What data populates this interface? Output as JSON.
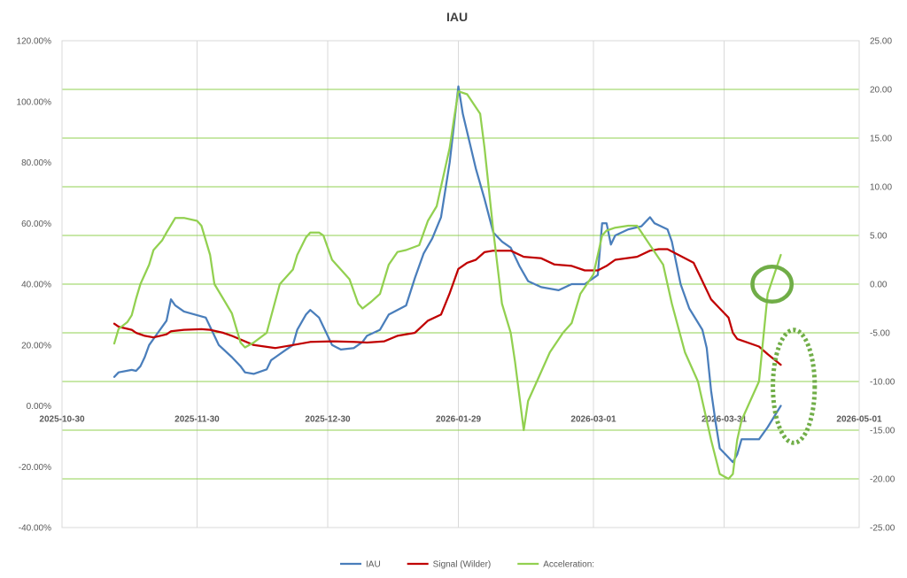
{
  "chart_data": {
    "type": "line",
    "title": "IAU",
    "x_axis": {
      "type": "date",
      "min": "2025-10-30",
      "max": "2026-05-01",
      "ticks": [
        "2025-10-30",
        "2025-11-30",
        "2025-12-30",
        "2026-01-29",
        "2026-03-01",
        "2026-03-31",
        "2026-05-01"
      ]
    },
    "y_left": {
      "min": -0.4,
      "max": 1.2,
      "step": 0.2,
      "tick_labels": [
        "-40.00%",
        "-20.00%",
        "0.00%",
        "20.00%",
        "40.00%",
        "60.00%",
        "80.00%",
        "100.00%",
        "120.00%"
      ]
    },
    "y_right": {
      "min": -25,
      "max": 25,
      "step": 5,
      "tick_labels": [
        "-25.00",
        "-20.00",
        "-15.00",
        "-10.00",
        "-5.00",
        "0.00",
        "5.00",
        "10.00",
        "15.00",
        "20.00",
        "25.00"
      ],
      "gridlines": true
    },
    "legend_position": "bottom",
    "series": [
      {
        "name": "IAU",
        "axis": "left",
        "color": "#4a7ebb",
        "points": [
          [
            "2025-11-11",
            0.095
          ],
          [
            "2025-11-12",
            0.11
          ],
          [
            "2025-11-15",
            0.118
          ],
          [
            "2025-11-16",
            0.115
          ],
          [
            "2025-11-17",
            0.13
          ],
          [
            "2025-11-18",
            0.16
          ],
          [
            "2025-11-19",
            0.2
          ],
          [
            "2025-11-21",
            0.24
          ],
          [
            "2025-11-23",
            0.28
          ],
          [
            "2025-11-24",
            0.35
          ],
          [
            "2025-11-25",
            0.33
          ],
          [
            "2025-11-27",
            0.31
          ],
          [
            "2025-12-02",
            0.29
          ],
          [
            "2025-12-03",
            0.26
          ],
          [
            "2025-12-05",
            0.2
          ],
          [
            "2025-12-08",
            0.16
          ],
          [
            "2025-12-10",
            0.13
          ],
          [
            "2025-12-11",
            0.11
          ],
          [
            "2025-12-13",
            0.105
          ],
          [
            "2025-12-16",
            0.12
          ],
          [
            "2025-12-17",
            0.15
          ],
          [
            "2025-12-18",
            0.16
          ],
          [
            "2025-12-20",
            0.18
          ],
          [
            "2025-12-22",
            0.2
          ],
          [
            "2025-12-23",
            0.25
          ],
          [
            "2025-12-25",
            0.3
          ],
          [
            "2025-12-26",
            0.315
          ],
          [
            "2025-12-28",
            0.29
          ],
          [
            "2025-12-29",
            0.26
          ],
          [
            "2025-12-31",
            0.2
          ],
          [
            "2026-01-02",
            0.185
          ],
          [
            "2026-01-05",
            0.19
          ],
          [
            "2026-01-07",
            0.21
          ],
          [
            "2026-01-08",
            0.23
          ],
          [
            "2026-01-11",
            0.25
          ],
          [
            "2026-01-13",
            0.3
          ],
          [
            "2026-01-17",
            0.33
          ],
          [
            "2026-01-19",
            0.42
          ],
          [
            "2026-01-21",
            0.5
          ],
          [
            "2026-01-23",
            0.55
          ],
          [
            "2026-01-25",
            0.62
          ],
          [
            "2026-01-27",
            0.8
          ],
          [
            "2026-01-29",
            1.05
          ],
          [
            "2026-01-30",
            0.96
          ],
          [
            "2026-02-02",
            0.78
          ],
          [
            "2026-02-04",
            0.68
          ],
          [
            "2026-02-06",
            0.57
          ],
          [
            "2026-02-08",
            0.54
          ],
          [
            "2026-02-10",
            0.52
          ],
          [
            "2026-02-12",
            0.46
          ],
          [
            "2026-02-14",
            0.41
          ],
          [
            "2026-02-17",
            0.39
          ],
          [
            "2026-02-21",
            0.38
          ],
          [
            "2026-02-24",
            0.4
          ],
          [
            "2026-02-27",
            0.4
          ],
          [
            "2026-03-02",
            0.43
          ],
          [
            "2026-03-03",
            0.6
          ],
          [
            "2026-03-04",
            0.6
          ],
          [
            "2026-03-05",
            0.53
          ],
          [
            "2026-03-06",
            0.56
          ],
          [
            "2026-03-09",
            0.58
          ],
          [
            "2026-03-12",
            0.59
          ],
          [
            "2026-03-14",
            0.62
          ],
          [
            "2026-03-15",
            0.6
          ],
          [
            "2026-03-18",
            0.58
          ],
          [
            "2026-03-19",
            0.54
          ],
          [
            "2026-03-21",
            0.4
          ],
          [
            "2026-03-23",
            0.32
          ],
          [
            "2026-03-26",
            0.25
          ],
          [
            "2026-03-27",
            0.19
          ],
          [
            "2026-03-28",
            0.05
          ],
          [
            "2026-03-29",
            -0.05
          ],
          [
            "2026-03-30",
            -0.14
          ],
          [
            "2026-04-01",
            -0.17
          ],
          [
            "2026-04-02",
            -0.185
          ],
          [
            "2026-04-03",
            -0.16
          ],
          [
            "2026-04-04",
            -0.11
          ],
          [
            "2026-04-08",
            -0.11
          ],
          [
            "2026-04-10",
            -0.07
          ],
          [
            "2026-04-13",
            0.0
          ]
        ]
      },
      {
        "name": "Signal (Wilder)",
        "axis": "left",
        "color": "#c00000",
        "points": [
          [
            "2025-11-11",
            0.27
          ],
          [
            "2025-11-12",
            0.26
          ],
          [
            "2025-11-15",
            0.25
          ],
          [
            "2025-11-16",
            0.24
          ],
          [
            "2025-11-18",
            0.23
          ],
          [
            "2025-11-20",
            0.225
          ],
          [
            "2025-11-23",
            0.235
          ],
          [
            "2025-11-24",
            0.245
          ],
          [
            "2025-11-27",
            0.25
          ],
          [
            "2025-12-01",
            0.252
          ],
          [
            "2025-12-03",
            0.25
          ],
          [
            "2025-12-06",
            0.24
          ],
          [
            "2025-12-08",
            0.23
          ],
          [
            "2025-12-13",
            0.2
          ],
          [
            "2025-12-18",
            0.19
          ],
          [
            "2025-12-22",
            0.2
          ],
          [
            "2025-12-26",
            0.21
          ],
          [
            "2025-12-31",
            0.212
          ],
          [
            "2026-01-05",
            0.21
          ],
          [
            "2026-01-08",
            0.208
          ],
          [
            "2026-01-12",
            0.212
          ],
          [
            "2026-01-15",
            0.23
          ],
          [
            "2026-01-19",
            0.24
          ],
          [
            "2026-01-22",
            0.28
          ],
          [
            "2026-01-25",
            0.3
          ],
          [
            "2026-01-27",
            0.37
          ],
          [
            "2026-01-29",
            0.45
          ],
          [
            "2026-01-31",
            0.47
          ],
          [
            "2026-02-02",
            0.48
          ],
          [
            "2026-02-04",
            0.505
          ],
          [
            "2026-02-06",
            0.51
          ],
          [
            "2026-02-10",
            0.51
          ],
          [
            "2026-02-13",
            0.49
          ],
          [
            "2026-02-17",
            0.485
          ],
          [
            "2026-02-20",
            0.465
          ],
          [
            "2026-02-24",
            0.46
          ],
          [
            "2026-02-27",
            0.445
          ],
          [
            "2026-03-02",
            0.445
          ],
          [
            "2026-03-04",
            0.46
          ],
          [
            "2026-03-06",
            0.48
          ],
          [
            "2026-03-11",
            0.49
          ],
          [
            "2026-03-14",
            0.51
          ],
          [
            "2026-03-16",
            0.515
          ],
          [
            "2026-03-18",
            0.515
          ],
          [
            "2026-03-20",
            0.5
          ],
          [
            "2026-03-22",
            0.485
          ],
          [
            "2026-03-24",
            0.47
          ],
          [
            "2026-03-26",
            0.41
          ],
          [
            "2026-03-28",
            0.35
          ],
          [
            "2026-03-30",
            0.32
          ],
          [
            "2026-04-01",
            0.29
          ],
          [
            "2026-04-02",
            0.24
          ],
          [
            "2026-04-03",
            0.22
          ],
          [
            "2026-04-05",
            0.21
          ],
          [
            "2026-04-08",
            0.195
          ],
          [
            "2026-04-10",
            0.17
          ],
          [
            "2026-04-13",
            0.135
          ]
        ]
      },
      {
        "name": "Acceleration:",
        "axis": "right",
        "color": "#92d050",
        "points": [
          [
            "2025-11-11",
            -6.1
          ],
          [
            "2025-11-12",
            -4.6
          ],
          [
            "2025-11-14",
            -3.9
          ],
          [
            "2025-11-15",
            -3.2
          ],
          [
            "2025-11-16",
            -1.5
          ],
          [
            "2025-11-17",
            0.0
          ],
          [
            "2025-11-19",
            2.0
          ],
          [
            "2025-11-20",
            3.5
          ],
          [
            "2025-11-22",
            4.5
          ],
          [
            "2025-11-23",
            5.3
          ],
          [
            "2025-11-25",
            6.8
          ],
          [
            "2025-11-27",
            6.8
          ],
          [
            "2025-11-30",
            6.5
          ],
          [
            "2025-12-01",
            6.0
          ],
          [
            "2025-12-03",
            3.0
          ],
          [
            "2025-12-04",
            0.0
          ],
          [
            "2025-12-06",
            -1.5
          ],
          [
            "2025-12-08",
            -3.0
          ],
          [
            "2025-12-10",
            -6.0
          ],
          [
            "2025-12-11",
            -6.5
          ],
          [
            "2025-12-13",
            -6.0
          ],
          [
            "2025-12-16",
            -5.0
          ],
          [
            "2025-12-19",
            0.0
          ],
          [
            "2025-12-22",
            1.5
          ],
          [
            "2025-12-23",
            3.0
          ],
          [
            "2025-12-25",
            4.8
          ],
          [
            "2025-12-26",
            5.3
          ],
          [
            "2025-12-28",
            5.3
          ],
          [
            "2025-12-29",
            5.0
          ],
          [
            "2025-12-31",
            2.5
          ],
          [
            "2026-01-02",
            1.5
          ],
          [
            "2026-01-04",
            0.5
          ],
          [
            "2026-01-06",
            -2.0
          ],
          [
            "2026-01-07",
            -2.5
          ],
          [
            "2026-01-09",
            -1.8
          ],
          [
            "2026-01-11",
            -1.0
          ],
          [
            "2026-01-13",
            2.0
          ],
          [
            "2026-01-15",
            3.3
          ],
          [
            "2026-01-17",
            3.5
          ],
          [
            "2026-01-20",
            4.0
          ],
          [
            "2026-01-22",
            6.5
          ],
          [
            "2026-01-24",
            8.0
          ],
          [
            "2026-01-27",
            14.0
          ],
          [
            "2026-01-28",
            17.0
          ],
          [
            "2026-01-29",
            19.8
          ],
          [
            "2026-01-31",
            19.5
          ],
          [
            "2026-02-03",
            17.5
          ],
          [
            "2026-02-04",
            14.0
          ],
          [
            "2026-02-06",
            5.5
          ],
          [
            "2026-02-08",
            -2.0
          ],
          [
            "2026-02-10",
            -5.0
          ],
          [
            "2026-02-11",
            -8.0
          ],
          [
            "2026-02-13",
            -15.0
          ],
          [
            "2026-02-14",
            -12.0
          ],
          [
            "2026-02-16",
            -10.0
          ],
          [
            "2026-02-19",
            -7.0
          ],
          [
            "2026-02-22",
            -5.0
          ],
          [
            "2026-02-24",
            -4.0
          ],
          [
            "2026-02-26",
            -1.0
          ],
          [
            "2026-03-01",
            1.0
          ],
          [
            "2026-03-03",
            5.0
          ],
          [
            "2026-03-04",
            5.5
          ],
          [
            "2026-03-06",
            5.8
          ],
          [
            "2026-03-09",
            6.0
          ],
          [
            "2026-03-11",
            6.0
          ],
          [
            "2026-03-14",
            4.0
          ],
          [
            "2026-03-17",
            2.0
          ],
          [
            "2026-03-19",
            -2.0
          ],
          [
            "2026-03-22",
            -7.0
          ],
          [
            "2026-03-25",
            -10.0
          ],
          [
            "2026-03-27",
            -14.0
          ],
          [
            "2026-03-28",
            -16.0
          ],
          [
            "2026-03-30",
            -19.5
          ],
          [
            "2026-04-01",
            -20.0
          ],
          [
            "2026-04-02",
            -19.5
          ],
          [
            "2026-04-03",
            -16.0
          ],
          [
            "2026-04-04",
            -14.0
          ],
          [
            "2026-04-06",
            -12.0
          ],
          [
            "2026-04-08",
            -10.0
          ],
          [
            "2026-04-10",
            -1.0
          ],
          [
            "2026-04-13",
            3.0
          ]
        ]
      }
    ],
    "annotations": [
      {
        "shape": "circle",
        "style": "solid",
        "color": "#70ad47",
        "x": "2026-04-11",
        "y_right": 0.0,
        "radius_x_days": 4.5,
        "radius_y_right": 1.8
      },
      {
        "shape": "ellipse",
        "style": "dotted",
        "color": "#70ad47",
        "x": "2026-04-16",
        "y_right": -10.5,
        "radius_x_days": 4.8,
        "radius_y_right": 5.8
      }
    ]
  }
}
